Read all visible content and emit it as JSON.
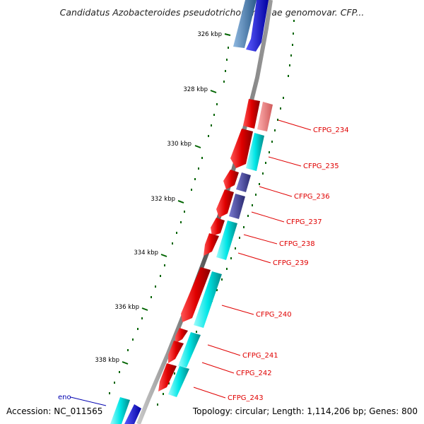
{
  "title": "Candidatus Azobacteroides pseudotrichonymphae genomovar. CFP...",
  "accession": "Accession: NC_011565",
  "summary": "Topology: circular; Length: 1,114,206 bp; Genes: 800",
  "ticks": [
    "326 kbp",
    "328 kbp",
    "330 kbp",
    "332 kbp",
    "334 kbp",
    "336 kbp",
    "338 kbp"
  ],
  "labels": [
    {
      "text": "CFPG_234",
      "color": "#e00000"
    },
    {
      "text": "CFPG_235",
      "color": "#e00000"
    },
    {
      "text": "CFPG_236",
      "color": "#e00000"
    },
    {
      "text": "CFPG_237",
      "color": "#e00000"
    },
    {
      "text": "CFPG_238",
      "color": "#e00000"
    },
    {
      "text": "CFPG_239",
      "color": "#e00000"
    },
    {
      "text": "CFPG_240",
      "color": "#e00000"
    },
    {
      "text": "CFPG_241",
      "color": "#e00000"
    },
    {
      "text": "CFPG_242",
      "color": "#e00000"
    },
    {
      "text": "CFPG_243",
      "color": "#e00000"
    },
    {
      "text": "eno",
      "color": "#0000b0"
    }
  ],
  "colors": {
    "cds": "#e00000",
    "rrna": "#00c8c8",
    "trna": "#404090",
    "pseudo": "#f07070",
    "blue_gene": "#0000e0",
    "steel_gene": "#3a6ea0",
    "backbone": "#808080",
    "tick": "#006400"
  }
}
